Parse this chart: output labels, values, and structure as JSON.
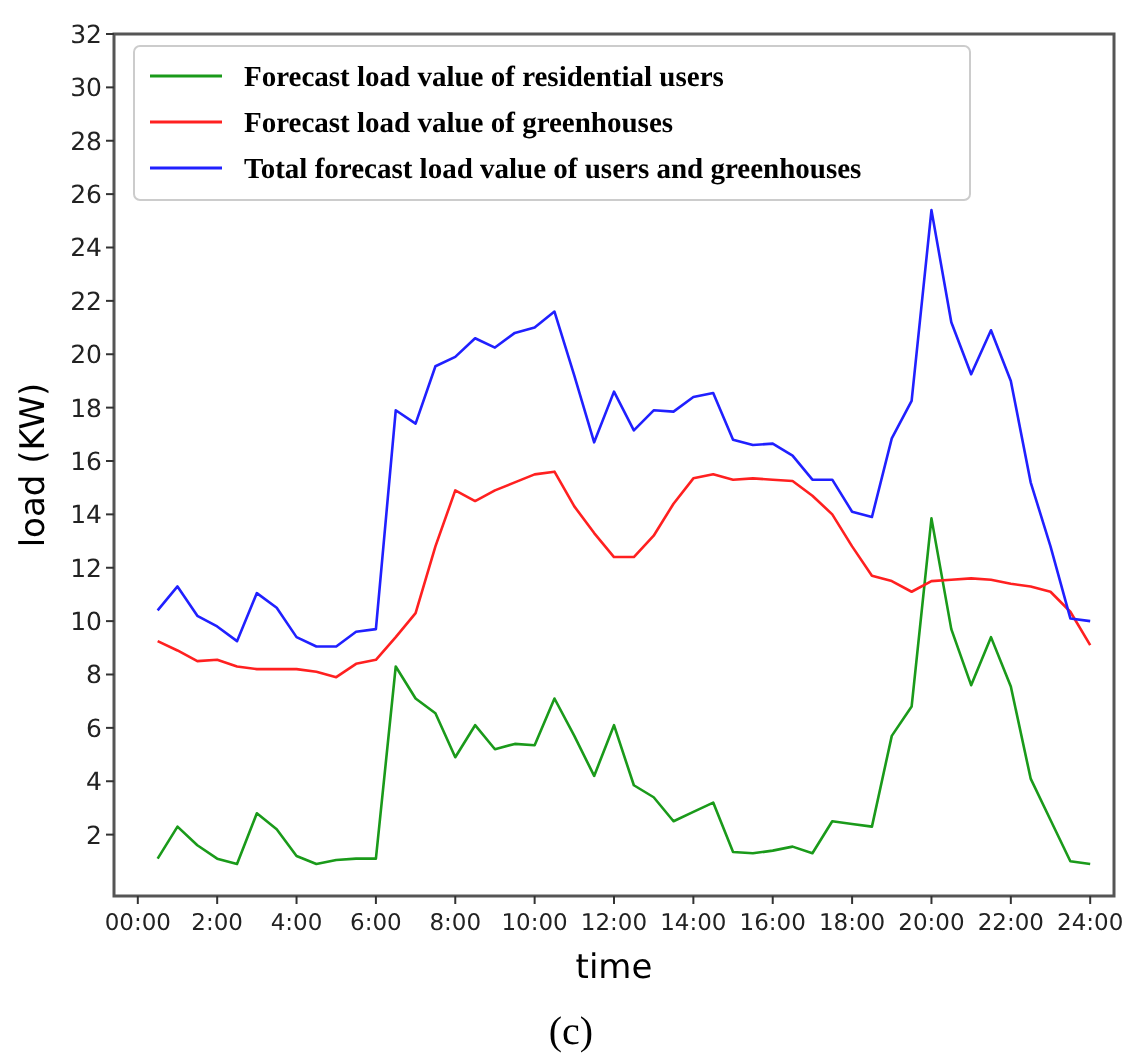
{
  "chart_data": {
    "type": "line",
    "xlabel": "time",
    "ylabel": "load (KW)",
    "annotations": [
      "(c)"
    ],
    "x": [
      0.5,
      1,
      1.5,
      2,
      2.5,
      3,
      3.5,
      4,
      4.5,
      5,
      5.5,
      6,
      6.5,
      7,
      7.5,
      8,
      8.5,
      9,
      9.5,
      10,
      10.5,
      11,
      11.5,
      12,
      12.5,
      13,
      13.5,
      14,
      14.5,
      15,
      15.5,
      16,
      16.5,
      17,
      17.5,
      18,
      18.5,
      19,
      19.5,
      20,
      20.5,
      21,
      21.5,
      22,
      22.5,
      23,
      23.5,
      24
    ],
    "series": [
      {
        "name": "Forecast load value of residential users",
        "color": "#1a9a1a",
        "values": [
          1.1,
          2.3,
          1.6,
          1.1,
          0.9,
          2.8,
          2.2,
          1.2,
          0.9,
          1.05,
          1.1,
          1.1,
          8.3,
          7.1,
          6.55,
          4.9,
          6.1,
          5.2,
          5.4,
          5.35,
          7.1,
          5.7,
          4.2,
          6.1,
          3.85,
          3.4,
          2.5,
          2.85,
          3.2,
          1.35,
          1.3,
          1.4,
          1.55,
          1.3,
          2.5,
          2.4,
          2.3,
          5.7,
          6.8,
          13.85,
          9.7,
          7.6,
          9.4,
          7.55,
          4.1,
          2.55,
          1.0,
          0.9
        ]
      },
      {
        "name": "Forecast load value of greenhouses",
        "color": "#ff2020",
        "values": [
          9.25,
          8.9,
          8.5,
          8.55,
          8.3,
          8.2,
          8.2,
          8.2,
          8.1,
          7.9,
          8.4,
          8.55,
          9.4,
          10.3,
          12.8,
          14.9,
          14.5,
          14.9,
          15.2,
          15.5,
          15.6,
          14.3,
          13.3,
          12.4,
          12.4,
          13.2,
          14.4,
          15.35,
          15.5,
          15.3,
          15.35,
          15.3,
          15.25,
          14.7,
          14.0,
          12.8,
          11.7,
          11.5,
          11.1,
          11.5,
          11.55,
          11.6,
          11.55,
          11.4,
          11.3,
          11.1,
          10.35,
          9.1
        ]
      },
      {
        "name": "Total forecast load value of users and greenhouses",
        "color": "#2020ff",
        "values": [
          10.4,
          11.3,
          10.2,
          9.8,
          9.25,
          11.05,
          10.5,
          9.4,
          9.05,
          9.05,
          9.6,
          9.7,
          17.9,
          17.4,
          19.55,
          19.9,
          20.6,
          20.25,
          20.8,
          21.0,
          21.6,
          19.2,
          16.7,
          18.6,
          17.15,
          17.9,
          17.85,
          18.4,
          18.55,
          16.8,
          16.6,
          16.65,
          16.2,
          15.3,
          15.3,
          14.1,
          13.9,
          16.85,
          18.25,
          25.4,
          21.2,
          19.25,
          20.9,
          19.0,
          15.2,
          12.8,
          10.1,
          10.0
        ]
      }
    ],
    "xlim": [
      -0.6,
      24.6
    ],
    "xticks": [
      {
        "value": 0,
        "label": "00:00"
      },
      {
        "value": 2,
        "label": "2:00"
      },
      {
        "value": 4,
        "label": "4:00"
      },
      {
        "value": 6,
        "label": "6:00"
      },
      {
        "value": 8,
        "label": "8:00"
      },
      {
        "value": 10,
        "label": "10:00"
      },
      {
        "value": 12,
        "label": "12:00"
      },
      {
        "value": 14,
        "label": "14:00"
      },
      {
        "value": 16,
        "label": "16:00"
      },
      {
        "value": 18,
        "label": "18:00"
      },
      {
        "value": 20,
        "label": "20:00"
      },
      {
        "value": 22,
        "label": "22:00"
      },
      {
        "value": 24,
        "label": "24:00"
      }
    ],
    "ylim": [
      -0.3,
      32
    ],
    "yticks": [
      2,
      4,
      6,
      8,
      10,
      12,
      14,
      16,
      18,
      20,
      22,
      24,
      26,
      28,
      30,
      32
    ],
    "legend": "top left",
    "grid": false
  }
}
